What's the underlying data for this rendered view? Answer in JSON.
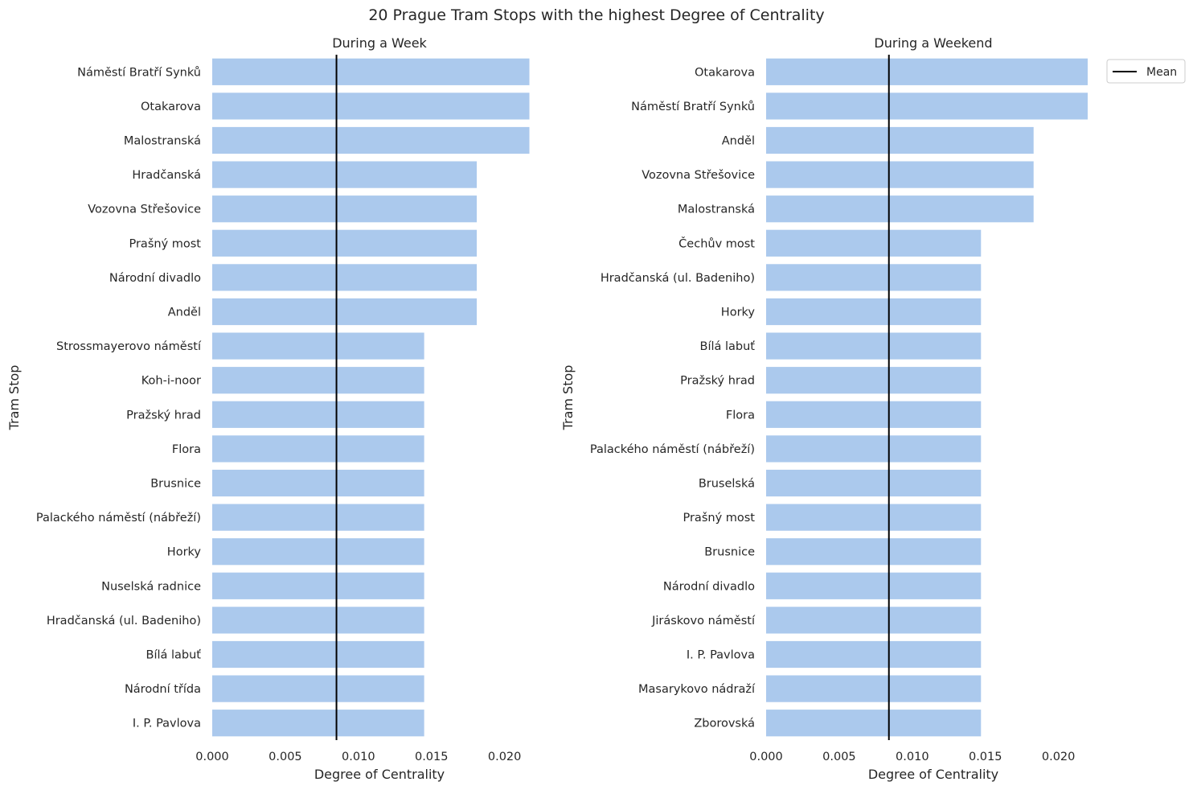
{
  "figure": {
    "suptitle": "20 Prague Tram Stops with the highest Degree of Centrality"
  },
  "legend": {
    "entries": [
      {
        "label": "Mean",
        "color": "#000000",
        "marker": "line"
      }
    ],
    "placement": "outside-top-right"
  },
  "style": {
    "bar_color": "#abc9ed",
    "mean_line_color": "#000000",
    "grid": false
  },
  "chart_data": [
    {
      "type": "bar",
      "orientation": "horizontal",
      "title": "During a Week",
      "xlabel": "Degree of Centrality",
      "ylabel": "Tram Stop",
      "xlim": [
        0,
        0.022
      ],
      "xticks": [
        0.0,
        0.005,
        0.01,
        0.015,
        0.02
      ],
      "xtick_labels": [
        "0.000",
        "0.005",
        "0.010",
        "0.015",
        "0.020"
      ],
      "mean": 0.0085,
      "categories": [
        "Náměstí Bratří Synků",
        "Otakarova",
        "Malostranská",
        "Hradčanská",
        "Vozovna Střešovice",
        "Prašný most",
        "Národní divadlo",
        "Anděl",
        "Strossmayerovo náměstí",
        "Koh-i-noor",
        "Pražský hrad",
        "Flora",
        "Brusnice",
        "Palackého náměstí (nábřeží)",
        "Horky",
        "Nuselská radnice",
        "Hradčanská (ul. Badeniho)",
        "Bílá labuť",
        "Národní třída",
        "I. P. Pavlova"
      ],
      "values": [
        0.0217,
        0.0217,
        0.0217,
        0.0181,
        0.0181,
        0.0181,
        0.0181,
        0.0181,
        0.0145,
        0.0145,
        0.0145,
        0.0145,
        0.0145,
        0.0145,
        0.0145,
        0.0145,
        0.0145,
        0.0145,
        0.0145,
        0.0145
      ]
    },
    {
      "type": "bar",
      "orientation": "horizontal",
      "title": "During a Weekend",
      "xlabel": "Degree of Centrality",
      "ylabel": "Tram Stop",
      "xlim": [
        0,
        0.022
      ],
      "xticks": [
        0.0,
        0.005,
        0.01,
        0.015,
        0.02
      ],
      "xtick_labels": [
        "0.000",
        "0.005",
        "0.010",
        "0.015",
        "0.020"
      ],
      "mean": 0.0084,
      "categories": [
        "Otakarova",
        "Náměstí Bratří Synků",
        "Anděl",
        "Vozovna Střešovice",
        "Malostranská",
        "Čechův most",
        "Hradčanská (ul. Badeniho)",
        "Horky",
        "Bílá labuť",
        "Pražský hrad",
        "Flora",
        "Palackého náměstí (nábřeží)",
        "Bruselská",
        "Prašný most",
        "Brusnice",
        "Národní divadlo",
        "Jiráskovo náměstí",
        "I. P. Pavlova",
        "Masarykovo nádraží",
        "Zborovská"
      ],
      "values": [
        0.022,
        0.022,
        0.0183,
        0.0183,
        0.0183,
        0.0147,
        0.0147,
        0.0147,
        0.0147,
        0.0147,
        0.0147,
        0.0147,
        0.0147,
        0.0147,
        0.0147,
        0.0147,
        0.0147,
        0.0147,
        0.0147,
        0.0147
      ]
    }
  ]
}
